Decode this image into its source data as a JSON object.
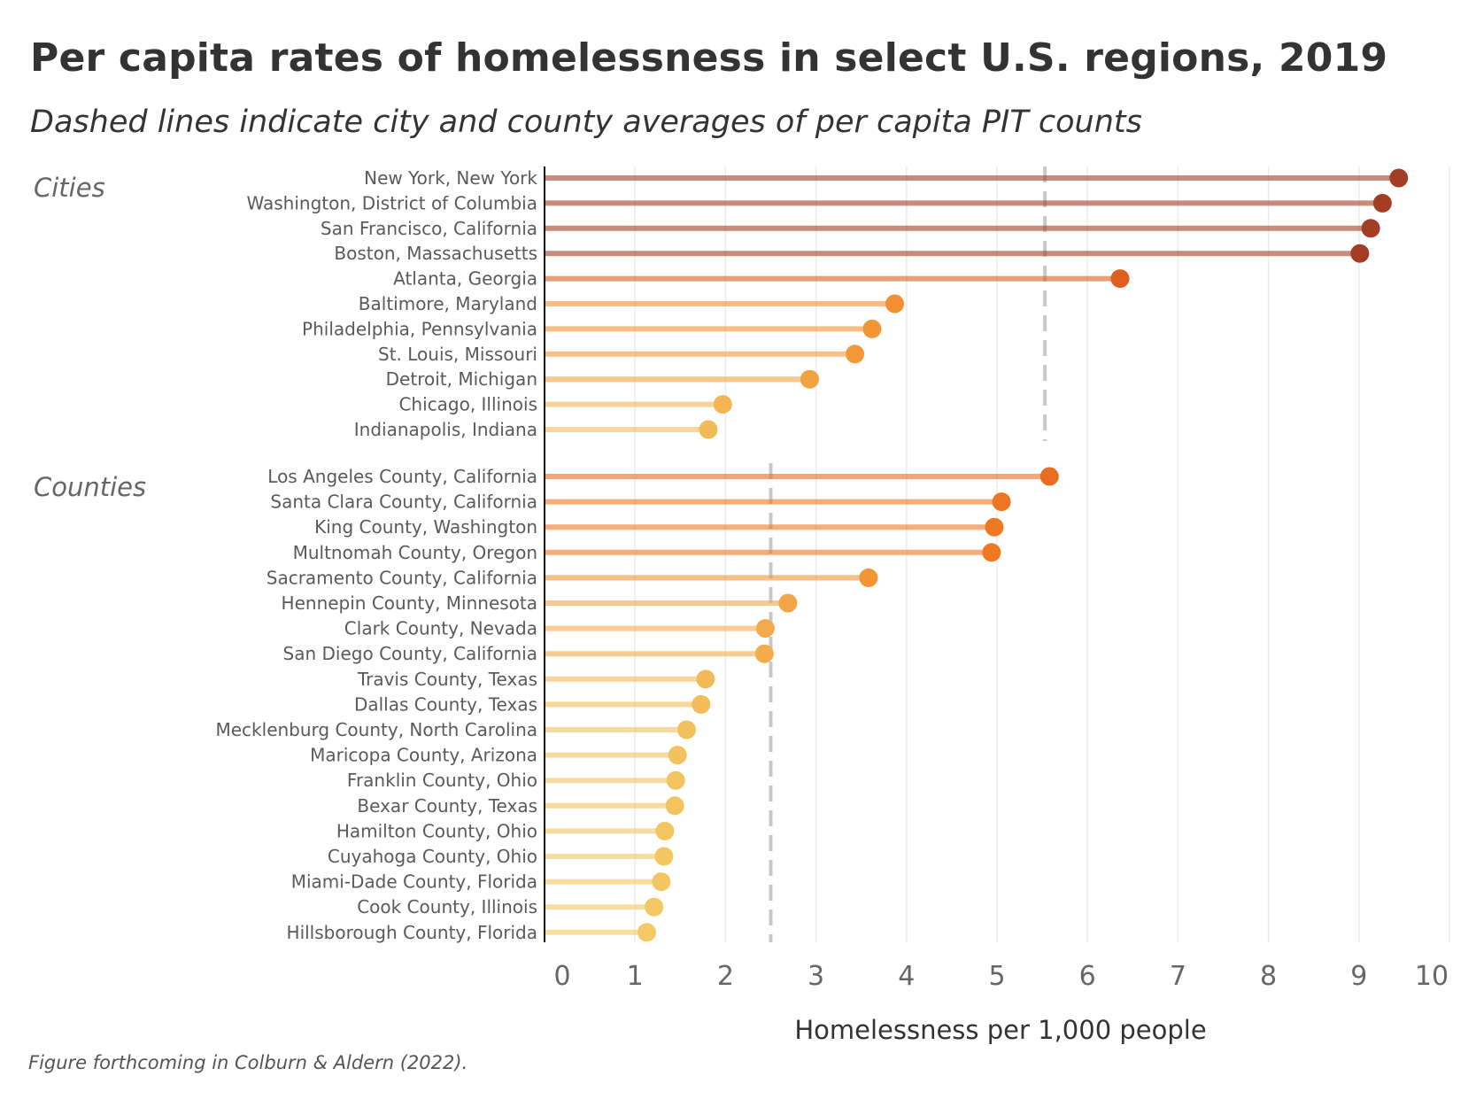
{
  "chart_data": {
    "type": "lollipop",
    "title": "Per capita rates of homelessness in select U.S. regions, 2019",
    "subtitle": "Dashed lines indicate city and county averages of per capita PIT counts",
    "xlabel": "Homelessness per 1,000 people",
    "ylabel": "",
    "xlim": [
      0,
      10
    ],
    "x_ticks": [
      "0",
      "1",
      "2",
      "3",
      "4",
      "5",
      "6",
      "7",
      "8",
      "9",
      "10"
    ],
    "grid": "vertical",
    "caption": "Figure forthcoming in Colburn & Aldern (2022).",
    "color_scale": {
      "low": "#f3cb66",
      "mid_low": "#f4a94a",
      "mid": "#f29535",
      "mid_high": "#ef7722",
      "high": "#de5e20",
      "max": "#a33d25"
    },
    "groups": [
      {
        "name": "Cities",
        "average": 5.53,
        "categories": [
          "New York, New York",
          "Washington, District of Columbia",
          "San Francisco, California",
          "Boston, Massachusetts",
          "Atlanta, Georgia",
          "Baltimore, Maryland",
          "Philadelphia, Pennsylvania",
          "St. Louis, Missouri",
          "Detroit, Michigan",
          "Chicago, Illinois",
          "Indianapolis, Indiana"
        ],
        "values": [
          9.44,
          9.26,
          9.13,
          9.01,
          6.36,
          3.87,
          3.62,
          3.43,
          2.93,
          1.97,
          1.81
        ]
      },
      {
        "name": "Counties",
        "average": 2.5,
        "categories": [
          "Los Angeles County, California",
          "Santa Clara County, California",
          "King County, Washington",
          "Multnomah County, Oregon",
          "Sacramento County, California",
          "Hennepin County, Minnesota",
          "Clark County, Nevada",
          "San Diego County, California",
          "Travis County, Texas",
          "Dallas County, Texas",
          "Mecklenburg County, North Carolina",
          "Maricopa County, Arizona",
          "Franklin County, Ohio",
          "Bexar County, Texas",
          "Hamilton County, Ohio",
          "Cuyahoga County, Ohio",
          "Miami-Dade County, Florida",
          "Cook County, Illinois",
          "Hillsborough County, Florida"
        ],
        "values": [
          5.58,
          5.05,
          4.97,
          4.94,
          3.58,
          2.69,
          2.44,
          2.43,
          1.78,
          1.73,
          1.57,
          1.47,
          1.45,
          1.44,
          1.33,
          1.32,
          1.29,
          1.21,
          1.13
        ]
      }
    ]
  }
}
